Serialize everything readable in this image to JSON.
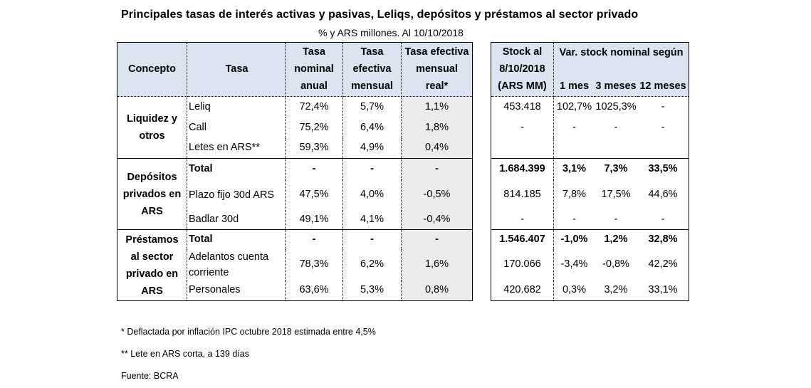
{
  "title": "Principales tasas de interés activas y pasivas, Leliqs, depósitos y préstamos al sector privado",
  "subtitle": "% y ARS millones. Al 10/10/2018",
  "headers": {
    "concepto": "Concepto",
    "tasa": "Tasa",
    "tasa_nominal_anual": [
      "Tasa",
      "nominal",
      "anual"
    ],
    "tasa_efectiva_mensual": [
      "Tasa",
      "efectiva",
      "mensual"
    ],
    "tasa_efectiva_mensual_real": [
      "Tasa efectiva",
      "mensual",
      "real*"
    ],
    "stock": [
      "Stock al",
      "8/10/2018",
      "(ARS MM)"
    ],
    "var_stock": "Var. stock nominal según",
    "m1": "1 mes",
    "m3": "3 meses",
    "m12": "12 meses"
  },
  "groups": [
    {
      "concepto": [
        "Liquidez y",
        "otros"
      ],
      "rows": [
        {
          "tasa": "Leliq",
          "nominal": "72,4%",
          "efectiva": "5,7%",
          "real": "1,1%",
          "stock": "453.418",
          "m1": "102,7%",
          "m3": "1025,3%",
          "m12": "-",
          "bold": false
        },
        {
          "tasa": "Call",
          "nominal": "75,2%",
          "efectiva": "6,4%",
          "real": "1,8%",
          "stock": "-",
          "m1": "-",
          "m3": "-",
          "m12": "-",
          "bold": false
        },
        {
          "tasa": "Letes en ARS**",
          "nominal": "59,3%",
          "efectiva": "4,9%",
          "real": "0,4%",
          "stock": "",
          "m1": "",
          "m3": "",
          "m12": "",
          "bold": false
        }
      ]
    },
    {
      "concepto": [
        "Depósitos",
        "privados en",
        "ARS"
      ],
      "rows": [
        {
          "tasa": "Total",
          "nominal": "-",
          "efectiva": "-",
          "real": "-",
          "stock": "1.684.399",
          "m1": "3,1%",
          "m3": "7,3%",
          "m12": "33,5%",
          "bold": true
        },
        {
          "tasa": "Plazo fijo 30d ARS",
          "nominal": "47,5%",
          "efectiva": "4,0%",
          "real": "-0,5%",
          "stock": "814.185",
          "m1": "7,8%",
          "m3": "17,5%",
          "m12": "44,6%",
          "bold": false
        },
        {
          "tasa": "Badlar 30d",
          "nominal": "49,1%",
          "efectiva": "4,1%",
          "real": "-0,4%",
          "stock": "-",
          "m1": "-",
          "m3": "-",
          "m12": "-",
          "bold": false
        }
      ]
    },
    {
      "concepto": [
        "Préstamos",
        "al sector",
        "privado en",
        "ARS"
      ],
      "rows": [
        {
          "tasa": "Total",
          "nominal": "-",
          "efectiva": "-",
          "real": "-",
          "stock": "1.546.407",
          "m1": "-1,0%",
          "m3": "1,2%",
          "m12": "32,8%",
          "bold": true
        },
        {
          "tasa": "Adelantos cuenta corriente",
          "nominal": "78,3%",
          "efectiva": "6,2%",
          "real": "1,6%",
          "stock": "170.066",
          "m1": "-3,4%",
          "m3": "-0,8%",
          "m12": "42,2%",
          "bold": false
        },
        {
          "tasa": "Personales",
          "nominal": "63,6%",
          "efectiva": "5,3%",
          "real": "0,8%",
          "stock": "420.682",
          "m1": "0,3%",
          "m3": "3,2%",
          "m12": "33,1%",
          "bold": false
        }
      ]
    }
  ],
  "notes": [
    "* Deflactada por inflación IPC octubre 2018 estimada entre 4,5%",
    "** Lete en ARS corta, a 139 días",
    "Fuente: BCRA"
  ],
  "colors": {
    "header_bg": "#dce4f2",
    "real_col_bg": "#ececec"
  }
}
